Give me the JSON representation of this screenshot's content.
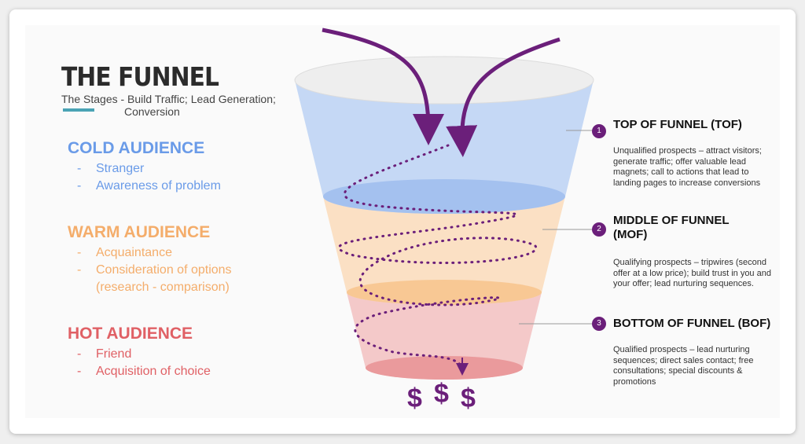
{
  "header": {
    "title": "THE FUNNEL",
    "subtitle_line1": "The Stages - Build Traffic; Lead Generation;",
    "subtitle_line2": "Conversion"
  },
  "audiences": [
    {
      "title": "COLD AUDIENCE",
      "color": "#6a9be8",
      "items": [
        "Stranger",
        "Awareness of problem"
      ]
    },
    {
      "title": "WARM AUDIENCE",
      "color": "#f4ad6b",
      "items": [
        "Acquaintance",
        "Consideration of options (research - comparison)"
      ]
    },
    {
      "title": "HOT AUDIENCE",
      "color": "#e06065",
      "items": [
        "Friend",
        "Acquisition of choice"
      ]
    }
  ],
  "stages": [
    {
      "number": "1",
      "title": "TOP OF FUNNEL (TOF)",
      "description": "Unqualified prospects – attract visitors; generate traffic; offer valuable lead magnets; call to actions that lead to landing pages to increase conversions"
    },
    {
      "number": "2",
      "title": "MIDDLE OF FUNNEL (MOF)",
      "description": "Qualifying prospects –  tripwires (second offer at a low price); build trust in you and your offer; lead nurturing sequences."
    },
    {
      "number": "3",
      "title": "BOTTOM OF FUNNEL (BOF)",
      "description": "Qualified prospects – lead nurturing sequences; direct sales contact; free consultations; special discounts & promotions"
    }
  ],
  "funnel": {
    "dollar_symbol": "$",
    "colors": {
      "top": "#c5d8f5",
      "middle": "#fbe0c4",
      "bottom": "#f4c9c9",
      "accent": "#6b1f7a"
    }
  }
}
